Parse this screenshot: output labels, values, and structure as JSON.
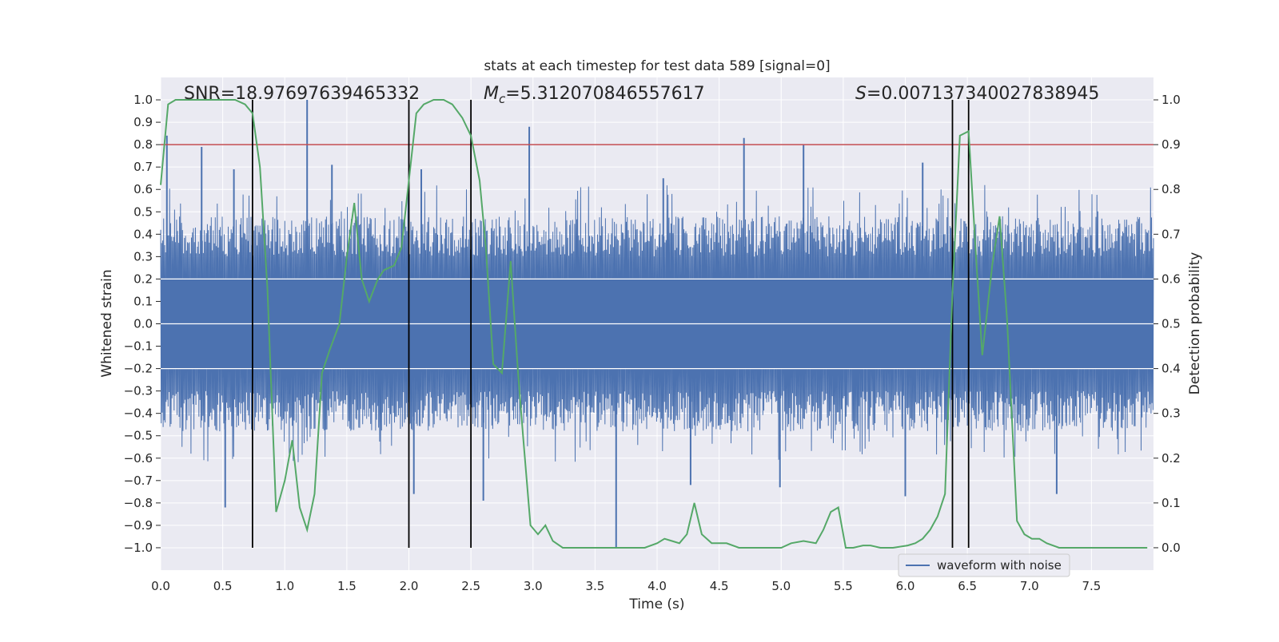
{
  "chart_data": {
    "type": "line",
    "title": "stats at each timestep for test data 589 [signal=0]",
    "xlabel": "Time (s)",
    "ylabel_left": "Whitened strain",
    "ylabel_right": "Detection probability",
    "xlim": [
      0.0,
      8.0
    ],
    "ylim_left": [
      -1.1,
      1.1
    ],
    "ylim_right": [
      -0.05,
      1.05
    ],
    "xticks": [
      "0.0",
      "0.5",
      "1.0",
      "1.5",
      "2.0",
      "2.5",
      "3.0",
      "3.5",
      "4.0",
      "4.5",
      "5.0",
      "5.5",
      "6.0",
      "6.5",
      "7.0",
      "7.5"
    ],
    "yticks_left": [
      "1.0",
      "0.9",
      "0.8",
      "0.7",
      "0.6",
      "0.5",
      "0.4",
      "0.3",
      "0.2",
      "0.1",
      "0.0",
      "−0.1",
      "−0.2",
      "−0.3",
      "−0.4",
      "−0.5",
      "−0.6",
      "−0.7",
      "−0.8",
      "−0.9",
      "−1.0"
    ],
    "yticks_right": [
      "1.0",
      "0.9",
      "0.8",
      "0.7",
      "0.6",
      "0.5",
      "0.4",
      "0.3",
      "0.2",
      "0.1",
      "0.0"
    ],
    "grid": true,
    "legend": {
      "location": "lower-right",
      "entries": [
        {
          "label": "waveform with noise",
          "color": "#4c72b0"
        }
      ]
    },
    "annotations": {
      "snr": "SNR=18.97697639465332",
      "mc_symbol": "M",
      "mc_sub": "c",
      "mc_value": "=5.312070846557617",
      "s_symbol": "S",
      "s_value": "=0.007137340027838945"
    },
    "threshold": {
      "axis": "left",
      "y": 0.8,
      "color": "#c44e52"
    },
    "vertical_markers": [
      {
        "x": 0.74,
        "y_range": [
          -1.0,
          1.0
        ]
      },
      {
        "x": 2.0,
        "y_range": [
          -1.0,
          1.0
        ]
      },
      {
        "x": 2.5,
        "y_range": [
          -1.0,
          1.0
        ]
      },
      {
        "x": 6.38,
        "y_range": [
          -1.0,
          1.0
        ]
      },
      {
        "x": 6.51,
        "y_range": [
          -1.0,
          1.0
        ]
      }
    ],
    "series": [
      {
        "name": "waveform with noise",
        "axis": "left",
        "color": "#4c72b0",
        "style": "dense noise (core band ±0.2, envelope ±0.4–0.5)",
        "spikes": [
          [
            0.05,
            0.84
          ],
          [
            0.33,
            0.79
          ],
          [
            0.52,
            -0.82
          ],
          [
            0.59,
            0.69
          ],
          [
            1.18,
            1.0
          ],
          [
            1.38,
            0.71
          ],
          [
            2.04,
            -0.76
          ],
          [
            2.1,
            0.69
          ],
          [
            2.6,
            -0.79
          ],
          [
            2.97,
            0.88
          ],
          [
            3.67,
            -1.0
          ],
          [
            4.05,
            0.65
          ],
          [
            4.27,
            -0.72
          ],
          [
            4.7,
            0.83
          ],
          [
            4.99,
            -0.73
          ],
          [
            5.18,
            0.8
          ],
          [
            6.0,
            -0.77
          ],
          [
            6.14,
            0.72
          ],
          [
            7.22,
            -0.76
          ]
        ]
      },
      {
        "name": "",
        "axis": "right",
        "color": "#55a868",
        "x": [
          0.0,
          0.06,
          0.12,
          0.2,
          0.3,
          0.4,
          0.5,
          0.6,
          0.68,
          0.74,
          0.8,
          0.86,
          0.93,
          1.0,
          1.06,
          1.12,
          1.18,
          1.24,
          1.3,
          1.36,
          1.44,
          1.5,
          1.56,
          1.62,
          1.68,
          1.75,
          1.8,
          1.88,
          1.94,
          2.0,
          2.06,
          2.12,
          2.2,
          2.28,
          2.35,
          2.43,
          2.5,
          2.57,
          2.62,
          2.68,
          2.75,
          2.82,
          2.88,
          2.92,
          2.98,
          3.04,
          3.1,
          3.16,
          3.24,
          3.34,
          3.5,
          3.7,
          3.9,
          4.0,
          4.06,
          4.12,
          4.18,
          4.24,
          4.3,
          4.36,
          4.44,
          4.56,
          4.66,
          4.8,
          5.0,
          5.08,
          5.18,
          5.28,
          5.34,
          5.4,
          5.46,
          5.52,
          5.58,
          5.66,
          5.72,
          5.8,
          5.9,
          6.02,
          6.08,
          6.14,
          6.2,
          6.26,
          6.32,
          6.38,
          6.44,
          6.51,
          6.57,
          6.62,
          6.7,
          6.76,
          6.82,
          6.9,
          6.96,
          7.02,
          7.08,
          7.14,
          7.24,
          7.4,
          7.6,
          7.8,
          7.95
        ],
        "y": [
          0.81,
          0.99,
          1.0,
          1.0,
          1.0,
          1.0,
          1.0,
          1.0,
          0.99,
          0.97,
          0.85,
          0.58,
          0.08,
          0.15,
          0.24,
          0.09,
          0.04,
          0.12,
          0.39,
          0.44,
          0.5,
          0.65,
          0.77,
          0.6,
          0.55,
          0.6,
          0.62,
          0.63,
          0.67,
          0.82,
          0.97,
          0.99,
          1.0,
          1.0,
          0.99,
          0.96,
          0.92,
          0.82,
          0.67,
          0.41,
          0.39,
          0.64,
          0.39,
          0.25,
          0.05,
          0.03,
          0.05,
          0.015,
          0.0,
          0.0,
          0.0,
          0.0,
          0.0,
          0.01,
          0.02,
          0.015,
          0.01,
          0.03,
          0.1,
          0.03,
          0.01,
          0.01,
          0.0,
          0.0,
          0.0,
          0.01,
          0.015,
          0.01,
          0.04,
          0.08,
          0.09,
          0.0,
          0.0,
          0.005,
          0.005,
          0.0,
          0.0,
          0.005,
          0.01,
          0.02,
          0.04,
          0.07,
          0.12,
          0.57,
          0.92,
          0.93,
          0.65,
          0.43,
          0.63,
          0.74,
          0.51,
          0.06,
          0.03,
          0.02,
          0.02,
          0.01,
          0.0,
          0.0,
          0.0,
          0.0,
          0.0
        ]
      }
    ]
  }
}
